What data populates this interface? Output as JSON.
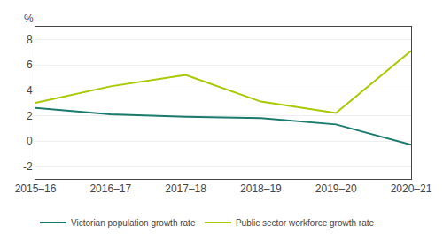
{
  "chart_data": {
    "type": "line",
    "categories": [
      "2015–16",
      "2016–17",
      "2017–18",
      "2018–19",
      "2019–20",
      "2020–21"
    ],
    "series": [
      {
        "name": "Victorian population growth rate",
        "color": "#1a7a6e",
        "values": [
          2.6,
          2.1,
          1.9,
          1.8,
          1.3,
          -0.3
        ]
      },
      {
        "name": "Public sector workforce growth rate",
        "color": "#a8c800",
        "values": [
          3.0,
          4.3,
          5.2,
          3.1,
          2.2,
          7.1
        ]
      }
    ],
    "ylabel": "%",
    "ylim": [
      -3,
      9
    ],
    "yticks": [
      -2,
      0,
      2,
      4,
      6,
      8
    ],
    "grid": true,
    "legend": "bottom"
  }
}
